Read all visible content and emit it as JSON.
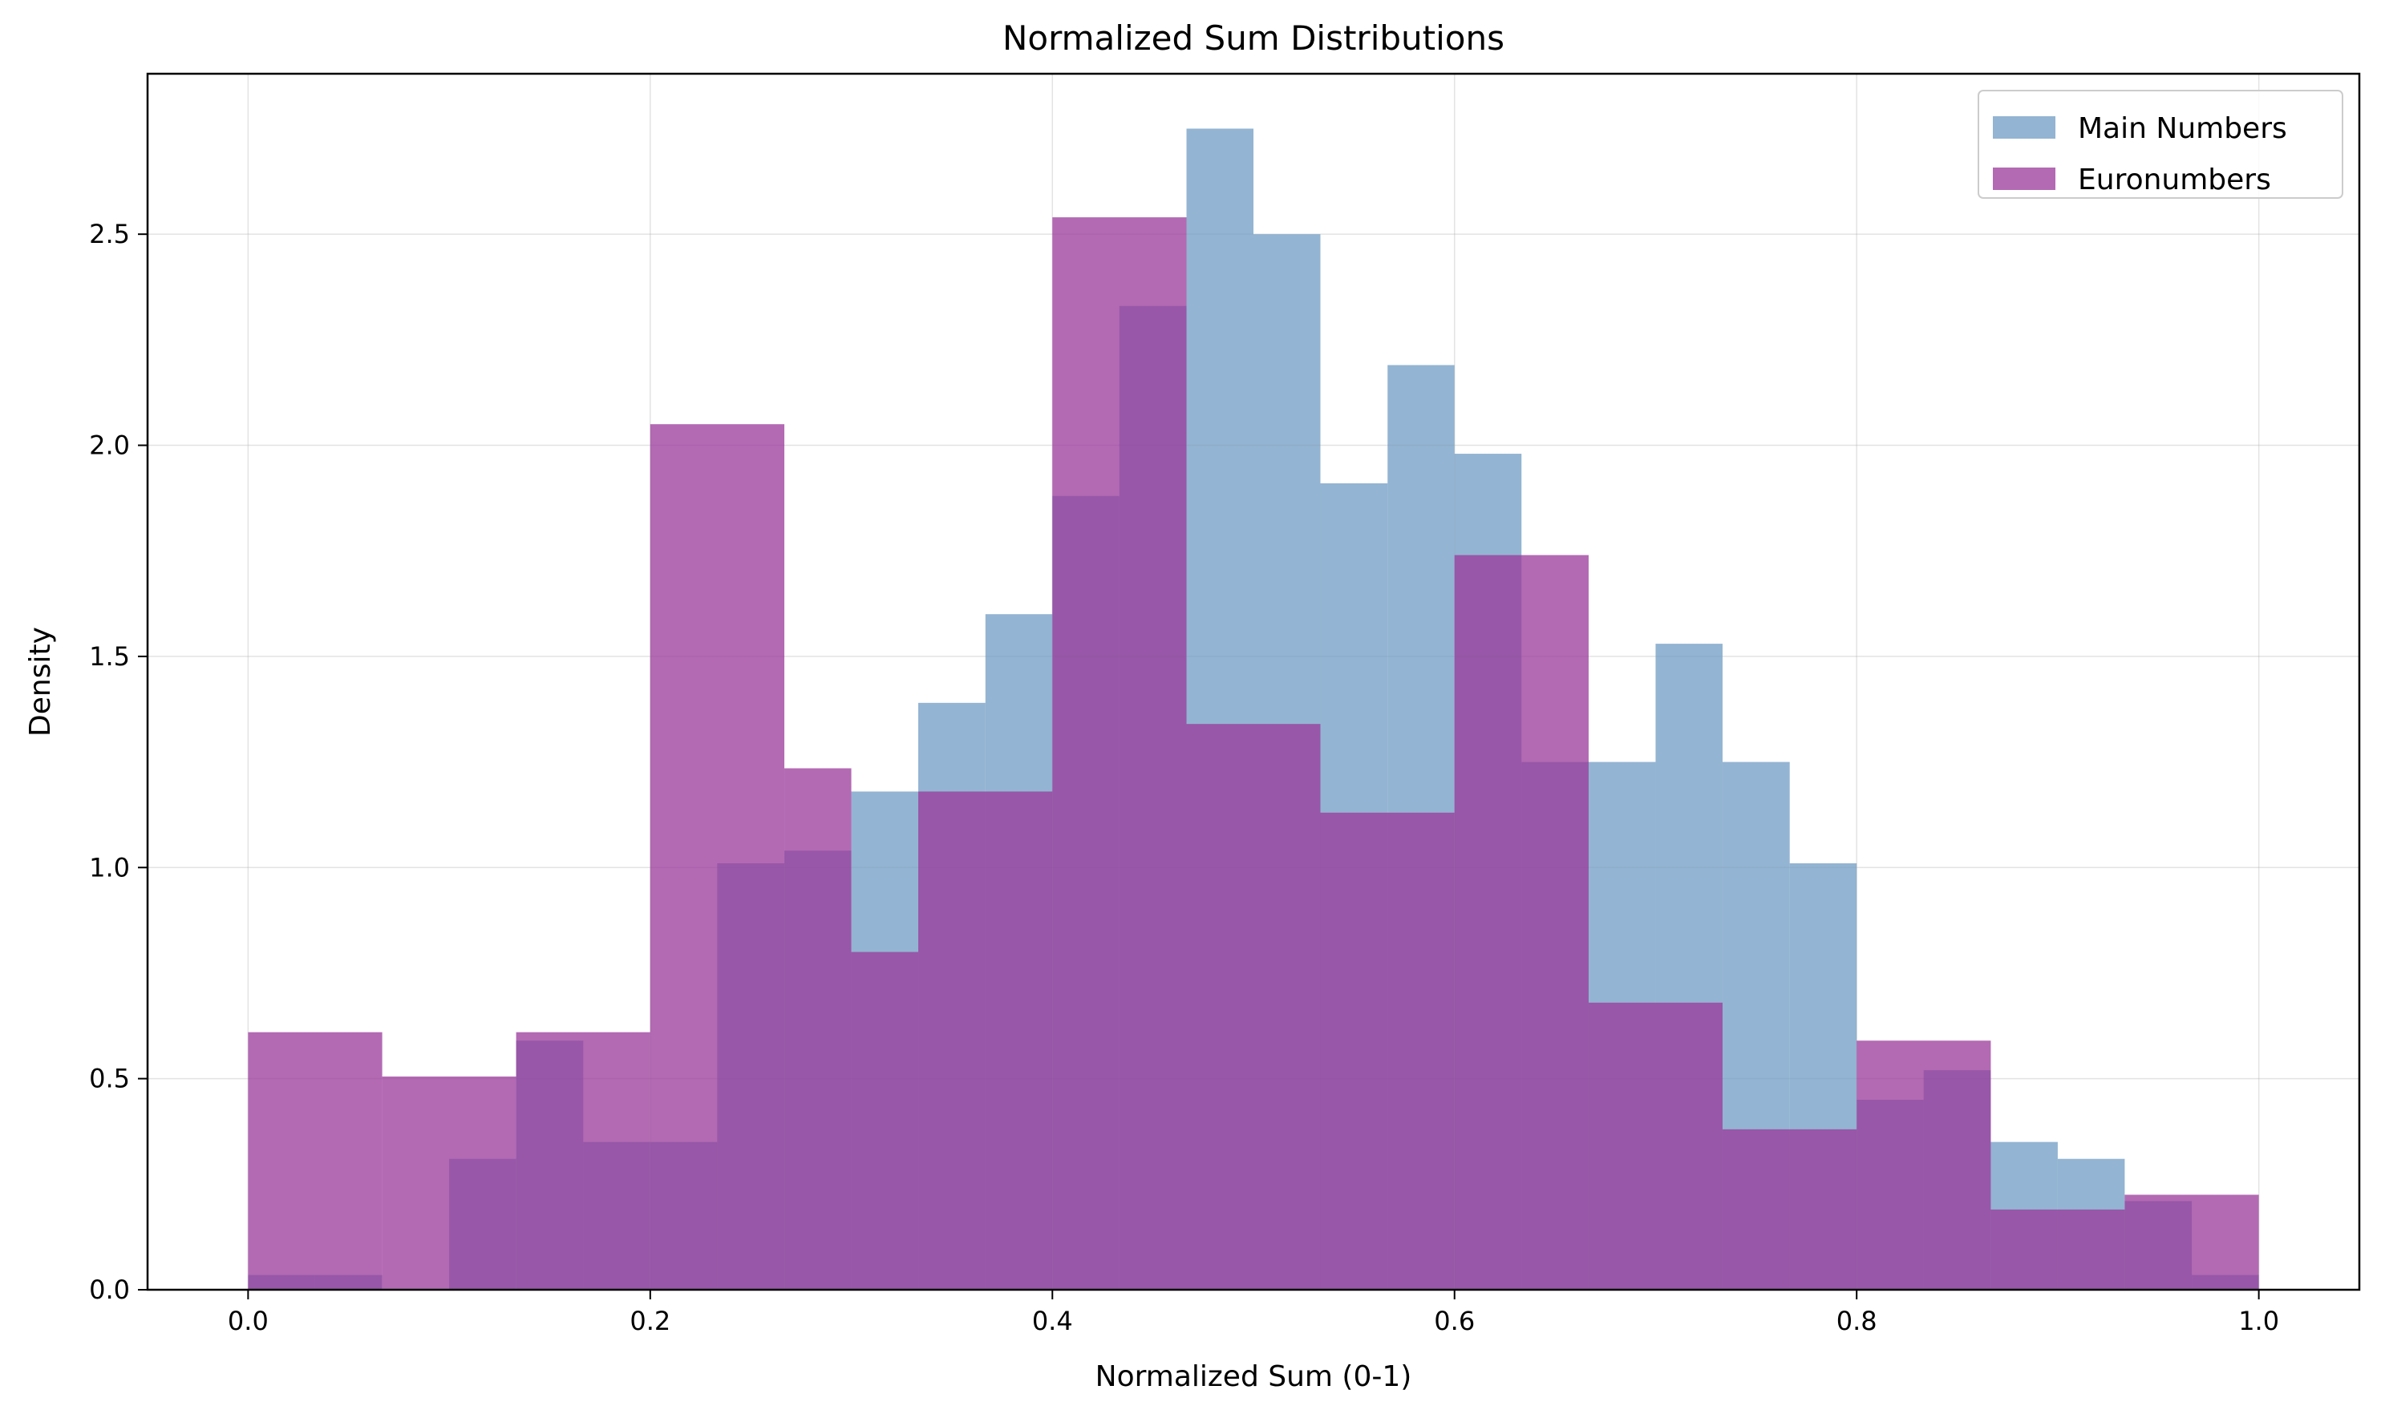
{
  "chart_data": {
    "type": "bar",
    "subtype": "histogram",
    "title": "Normalized Sum Distributions",
    "xlabel": "Normalized Sum (0-1)",
    "ylabel": "Density",
    "xlim": [
      -0.05,
      1.05
    ],
    "ylim": [
      0,
      2.88
    ],
    "x_ticks": [
      0.0,
      0.2,
      0.4,
      0.6,
      0.8,
      1.0
    ],
    "x_tick_labels": [
      "0.0",
      "0.2",
      "0.4",
      "0.6",
      "0.8",
      "1.0"
    ],
    "y_ticks": [
      0.0,
      0.5,
      1.0,
      1.5,
      2.0,
      2.5
    ],
    "y_tick_labels": [
      "0.0",
      "0.5",
      "1.0",
      "1.5",
      "2.0",
      "2.5"
    ],
    "grid": true,
    "legend_position": "top-right",
    "series": [
      {
        "name": "Main Numbers",
        "color": "#6f9bc3",
        "opacity": 0.75,
        "bin_edges": [
          0.0,
          0.0333,
          0.0667,
          0.1,
          0.1333,
          0.1667,
          0.2,
          0.2333,
          0.2667,
          0.3,
          0.3333,
          0.3667,
          0.4,
          0.4333,
          0.4667,
          0.5,
          0.5333,
          0.5667,
          0.6,
          0.6333,
          0.6667,
          0.7,
          0.7333,
          0.7667,
          0.8,
          0.8333,
          0.8667,
          0.9,
          0.9333,
          0.9667,
          1.0
        ],
        "values": [
          0.035,
          0.035,
          0.0,
          0.31,
          0.59,
          0.35,
          0.35,
          1.01,
          1.04,
          1.18,
          1.39,
          1.6,
          1.88,
          2.33,
          2.75,
          2.5,
          1.91,
          2.19,
          1.98,
          1.25,
          1.25,
          1.53,
          1.25,
          1.01,
          0.45,
          0.52,
          0.35,
          0.31,
          0.21,
          0.035
        ]
      },
      {
        "name": "Euronumbers",
        "color": "#9a389a",
        "opacity": 0.75,
        "bin_edges": [
          0.0,
          0.0667,
          0.1333,
          0.2,
          0.2667,
          0.3,
          0.3333,
          0.4,
          0.4667,
          0.5333,
          0.6,
          0.6667,
          0.7333,
          0.8,
          0.8667,
          0.9333,
          1.0
        ],
        "values": [
          0.61,
          0.505,
          0.61,
          2.05,
          1.235,
          0.8,
          1.18,
          2.54,
          1.34,
          1.13,
          1.74,
          0.68,
          0.38,
          0.59,
          0.19,
          0.225
        ]
      }
    ]
  }
}
